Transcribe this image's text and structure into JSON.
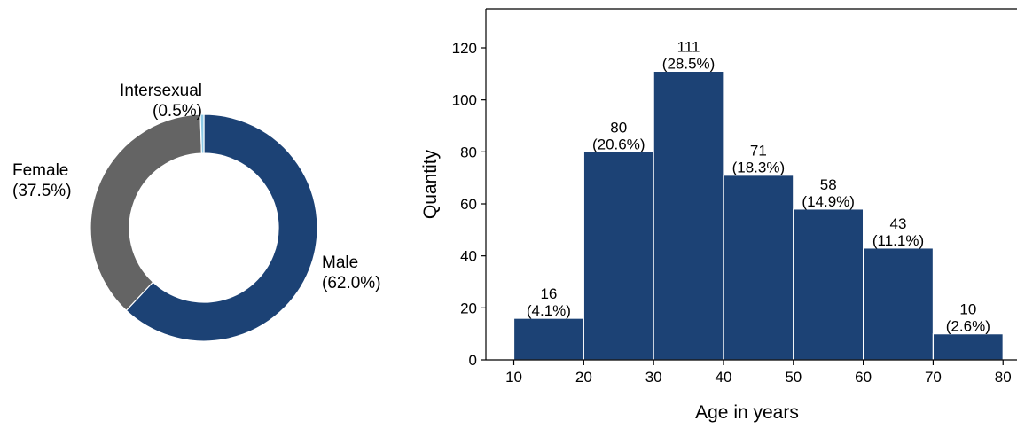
{
  "chart_data": [
    {
      "type": "pie",
      "style": "donut",
      "start_direction": "top",
      "order": "clockwise",
      "slices": [
        {
          "label": "Male",
          "pct_label": "(62.0%)",
          "value": 62.0,
          "color": "#1c4275"
        },
        {
          "label": "Female",
          "pct_label": "(37.5%)",
          "value": 37.5,
          "color": "#646464"
        },
        {
          "label": "Intersexual",
          "pct_label": "(0.5%)",
          "value": 0.5,
          "color": "#8ecae6"
        }
      ]
    },
    {
      "type": "bar",
      "style": "histogram",
      "bar_color": "#1c4275",
      "bins": [
        {
          "x0": 10,
          "x1": 20,
          "value": 16,
          "label_count": "16",
          "label_pct": "(4.1%)"
        },
        {
          "x0": 20,
          "x1": 30,
          "value": 80,
          "label_count": "80",
          "label_pct": "(20.6%)"
        },
        {
          "x0": 30,
          "x1": 40,
          "value": 111,
          "label_count": "111",
          "label_pct": "(28.5%)"
        },
        {
          "x0": 40,
          "x1": 50,
          "value": 71,
          "label_count": "71",
          "label_pct": "(18.3%)"
        },
        {
          "x0": 50,
          "x1": 60,
          "value": 58,
          "label_count": "58",
          "label_pct": "(14.9%)"
        },
        {
          "x0": 60,
          "x1": 70,
          "value": 43,
          "label_count": "43",
          "label_pct": "(11.1%)"
        },
        {
          "x0": 70,
          "x1": 80,
          "value": 10,
          "label_count": "10",
          "label_pct": "(2.6%)"
        }
      ],
      "xlabel": "Age in years",
      "ylabel": "Quantity",
      "xlim": [
        6,
        82
      ],
      "ylim": [
        0,
        135
      ],
      "xticks": [
        10,
        20,
        30,
        40,
        50,
        60,
        70,
        80
      ],
      "yticks": [
        0,
        20,
        40,
        60,
        80,
        100,
        120
      ],
      "grid": false
    }
  ]
}
